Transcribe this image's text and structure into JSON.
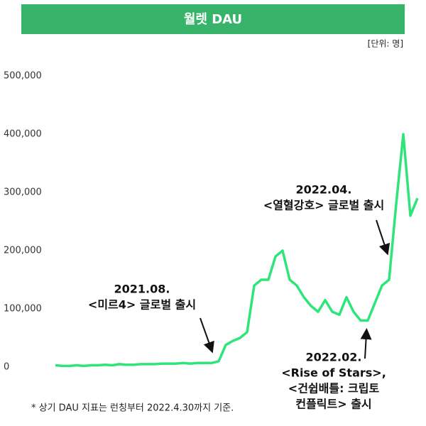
{
  "chart_data": {
    "type": "line",
    "title": "월렛 DAU",
    "unit_note": "[단위: 명]",
    "footnote": "* 상기 DAU 지표는 런칭부터 2022.4.30까지 기준.",
    "annotations": [
      {
        "lines": [
          "2021.08.",
          "<미르4> 글로벌 출시"
        ]
      },
      {
        "lines": [
          "2022.04.",
          "<열혈강호> 글로벌 출시"
        ]
      },
      {
        "lines": [
          "2022.02.",
          "<Rise of Stars>,",
          "<건쉽배틀: 크립토",
          "컨플릭트> 출시"
        ]
      }
    ],
    "categories": [
      null,
      null,
      null,
      null,
      null,
      null,
      null,
      null,
      null,
      null,
      null,
      null,
      null,
      null,
      null,
      null,
      null,
      null,
      null,
      null,
      null,
      null,
      null,
      null,
      null,
      null,
      null,
      null,
      null,
      null,
      null,
      null,
      null,
      null,
      null,
      null,
      null,
      null,
      null,
      null,
      null,
      null,
      null,
      null,
      null,
      null,
      null,
      null,
      null,
      null,
      null,
      null
    ],
    "series": [
      {
        "name": "DAU",
        "color": "#2ee57a",
        "values": [
          3000,
          2000,
          2000,
          3000,
          2000,
          3000,
          3000,
          4000,
          3000,
          5000,
          4000,
          4000,
          5000,
          5000,
          5000,
          6000,
          6000,
          6000,
          7000,
          6000,
          7000,
          7000,
          7000,
          10000,
          38000,
          45000,
          50000,
          60000,
          140000,
          150000,
          150000,
          190000,
          200000,
          150000,
          140000,
          120000,
          105000,
          95000,
          115000,
          95000,
          90000,
          120000,
          95000,
          80000,
          80000,
          110000,
          140000,
          150000,
          280000,
          400000,
          260000,
          290000
        ]
      }
    ],
    "ylim": [
      0,
      500000
    ],
    "yticks": [
      0,
      {
        "value": 100000,
        "label": "100,000"
      },
      {
        "value": 200000,
        "label": "200,000"
      },
      {
        "value": 300000,
        "label": "300,000"
      },
      {
        "value": 400000,
        "label": "400,000"
      },
      {
        "value": 500000,
        "label": "500,000"
      }
    ]
  }
}
